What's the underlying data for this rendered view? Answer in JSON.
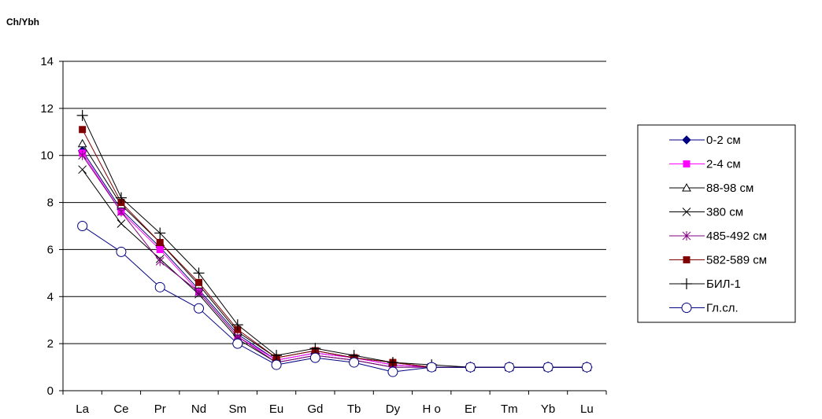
{
  "chart_data": {
    "type": "line",
    "ylabel": "Ch/Ybh",
    "ylim": [
      0,
      14
    ],
    "yticks": [
      0,
      2,
      4,
      6,
      8,
      10,
      12,
      14
    ],
    "grid": "horizontal",
    "legend_position": "right",
    "categories": [
      "La",
      "Ce",
      "Pr",
      "Nd",
      "Sm",
      "Eu",
      "Gd",
      "Tb",
      "Dy",
      "Ho",
      "Er",
      "Tm",
      "Yb",
      "Lu"
    ],
    "category_labels": [
      "La",
      "Ce",
      "Pr",
      "Nd",
      "Sm",
      "Eu",
      "Gd",
      "Tb",
      "Dy",
      "H o",
      "Er",
      "Tm",
      "Yb",
      "Lu"
    ],
    "series": [
      {
        "name": "0-2 см",
        "color": "#000080",
        "marker": "diamond-filled",
        "values": [
          10.2,
          7.7,
          6.1,
          4.3,
          2.4,
          1.3,
          1.6,
          1.4,
          1.1,
          1.0,
          1.0,
          1.0,
          1.0,
          1.0
        ]
      },
      {
        "name": "2-4 см",
        "color": "#FF00FF",
        "marker": "square-filled",
        "values": [
          10.1,
          7.6,
          6.0,
          4.2,
          2.3,
          1.3,
          1.6,
          1.4,
          1.1,
          1.0,
          1.0,
          1.0,
          1.0,
          1.0
        ]
      },
      {
        "name": "88-98 см",
        "color": "#000000",
        "marker": "triangle-open",
        "values": [
          10.5,
          7.9,
          6.3,
          4.5,
          2.5,
          1.4,
          1.7,
          1.4,
          1.2,
          1.0,
          1.0,
          1.0,
          1.0,
          1.0
        ]
      },
      {
        "name": "380 см",
        "color": "#000000",
        "marker": "x",
        "values": [
          9.4,
          7.1,
          5.6,
          4.1,
          2.2,
          1.2,
          1.5,
          1.3,
          1.0,
          1.0,
          1.0,
          1.0,
          1.0,
          1.0
        ]
      },
      {
        "name": "485-492 см",
        "color": "#800080",
        "marker": "asterisk",
        "values": [
          10.0,
          7.6,
          5.5,
          4.2,
          2.3,
          1.2,
          1.5,
          1.3,
          1.0,
          1.0,
          1.0,
          1.0,
          1.0,
          1.0
        ]
      },
      {
        "name": "582-589 см",
        "color": "#800000",
        "marker": "square-filled",
        "values": [
          11.1,
          8.0,
          6.3,
          4.6,
          2.6,
          1.4,
          1.7,
          1.4,
          1.2,
          1.0,
          1.0,
          1.0,
          1.0,
          1.0
        ]
      },
      {
        "name": "БИЛ-1",
        "color": "#000000",
        "marker": "plus",
        "values": [
          11.7,
          8.2,
          6.7,
          5.0,
          2.8,
          1.5,
          1.8,
          1.5,
          1.2,
          1.1,
          1.0,
          1.0,
          1.0,
          1.0
        ]
      },
      {
        "name": "Гл.сл.",
        "color": "#000080",
        "marker": "circle-open",
        "values": [
          7.0,
          5.9,
          4.4,
          3.5,
          2.0,
          1.1,
          1.4,
          1.2,
          0.8,
          1.0,
          1.0,
          1.0,
          1.0,
          1.0
        ]
      }
    ]
  }
}
